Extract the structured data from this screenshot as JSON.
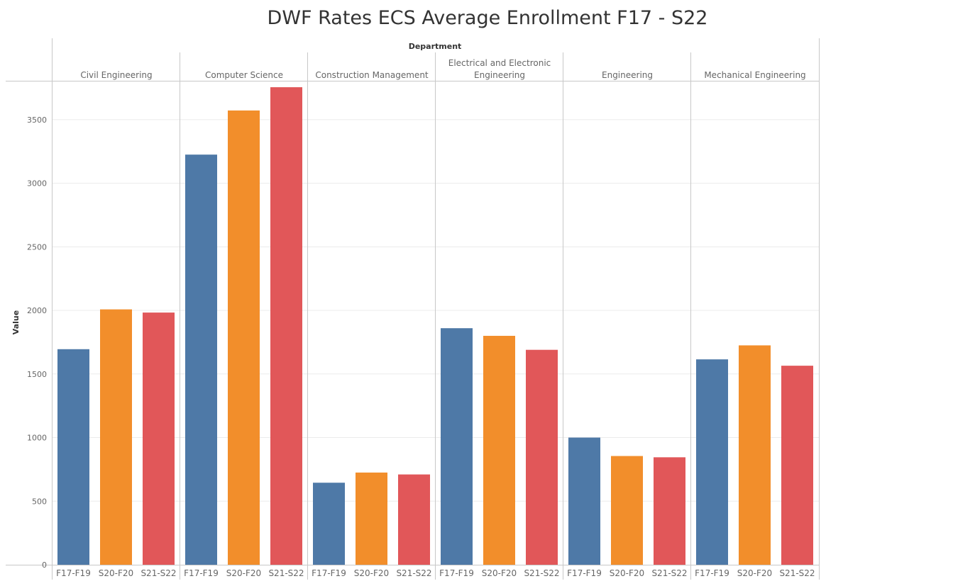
{
  "chart_data": {
    "type": "bar",
    "title": "DWF Rates ECS Average Enrollment F17 - S22",
    "column_header": "Department",
    "ylabel": "Value",
    "ylim": [
      0,
      3800
    ],
    "yticks": [
      0,
      500,
      1000,
      1500,
      2000,
      2500,
      3000,
      3500
    ],
    "periods": [
      "F17-F19",
      "S20-F20",
      "S21-S22"
    ],
    "period_colors": [
      "#4e79a7",
      "#f28e2b",
      "#e15759"
    ],
    "grid": true,
    "departments": [
      {
        "name": "Civil Engineering",
        "values": [
          1695,
          2008,
          1983
        ]
      },
      {
        "name": "Computer Science",
        "values": [
          3225,
          3572,
          3755
        ]
      },
      {
        "name": "Construction Management",
        "values": [
          645,
          725,
          710
        ]
      },
      {
        "name": "Electrical and Electronic Engineering",
        "values": [
          1860,
          1800,
          1690
        ]
      },
      {
        "name": "Engineering",
        "values": [
          1000,
          855,
          845
        ]
      },
      {
        "name": "Mechanical Engineering",
        "values": [
          1615,
          1725,
          1565
        ]
      }
    ]
  }
}
